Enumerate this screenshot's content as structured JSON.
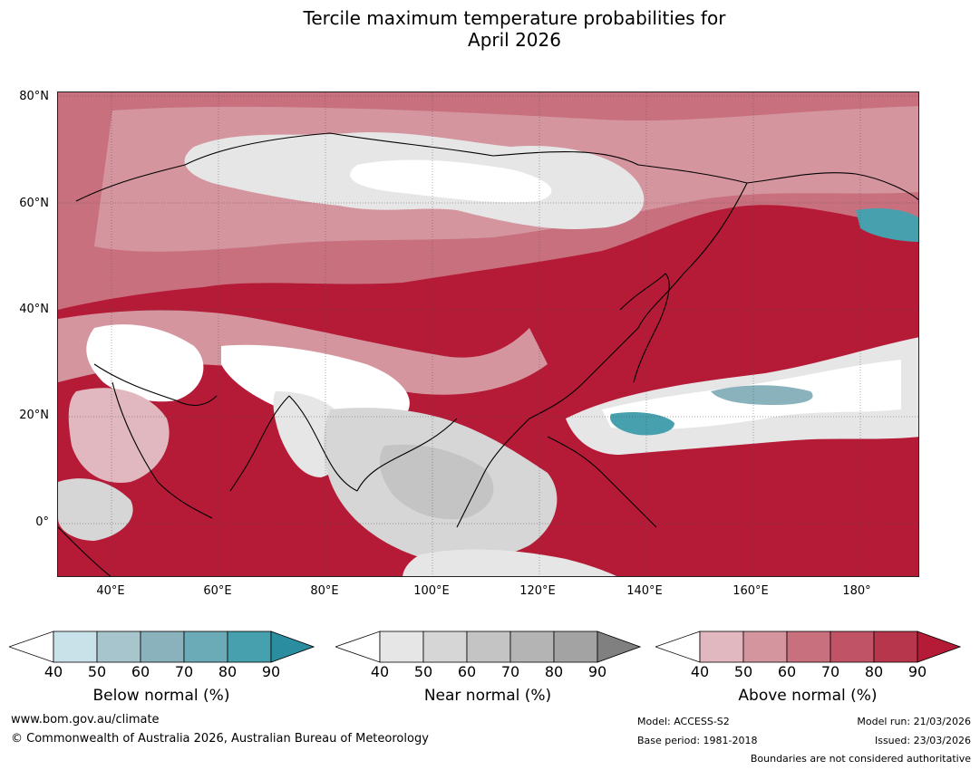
{
  "title": {
    "line1": "Tercile maximum temperature probabilities for",
    "line2": "April 2026"
  },
  "map": {
    "lat_labels": [
      "80°N",
      "60°N",
      "40°N",
      "20°N",
      "0°"
    ],
    "lon_labels": [
      "40°E",
      "60°E",
      "80°E",
      "100°E",
      "120°E",
      "140°E",
      "160°E",
      "180°"
    ],
    "lat_range": [
      -10,
      80
    ],
    "lon_range": [
      30,
      191
    ]
  },
  "colors": {
    "below": [
      "#ffffff",
      "#c9e1e8",
      "#a6c5cc",
      "#89b2bd",
      "#6aabb7",
      "#47a0ae",
      "#2b8ea0"
    ],
    "near": [
      "#ffffff",
      "#e6e6e6",
      "#d6d6d6",
      "#c4c4c4",
      "#b4b4b4",
      "#a3a3a3",
      "#808080"
    ],
    "above": [
      "#ffffff",
      "#e1b8bf",
      "#d4959f",
      "#c8707e",
      "#c05466",
      "#b8364b",
      "#b51b37"
    ]
  },
  "colorbars": {
    "ticks": [
      "40",
      "50",
      "60",
      "70",
      "80",
      "90"
    ],
    "below_label": "Below normal (%)",
    "near_label": "Near normal (%)",
    "above_label": "Above normal (%)"
  },
  "footer": {
    "website": "www.bom.gov.au/climate",
    "copyright": "© Commonwealth of Australia 2026, Australian Bureau of Meteorology",
    "model": "Model: ACCESS-S2",
    "base_period": "Base period: 1981-2018",
    "model_run": "Model run: 21/03/2026",
    "issued": "Issued: 23/03/2026",
    "disclaimer": "Boundaries are not considered authoritative"
  }
}
